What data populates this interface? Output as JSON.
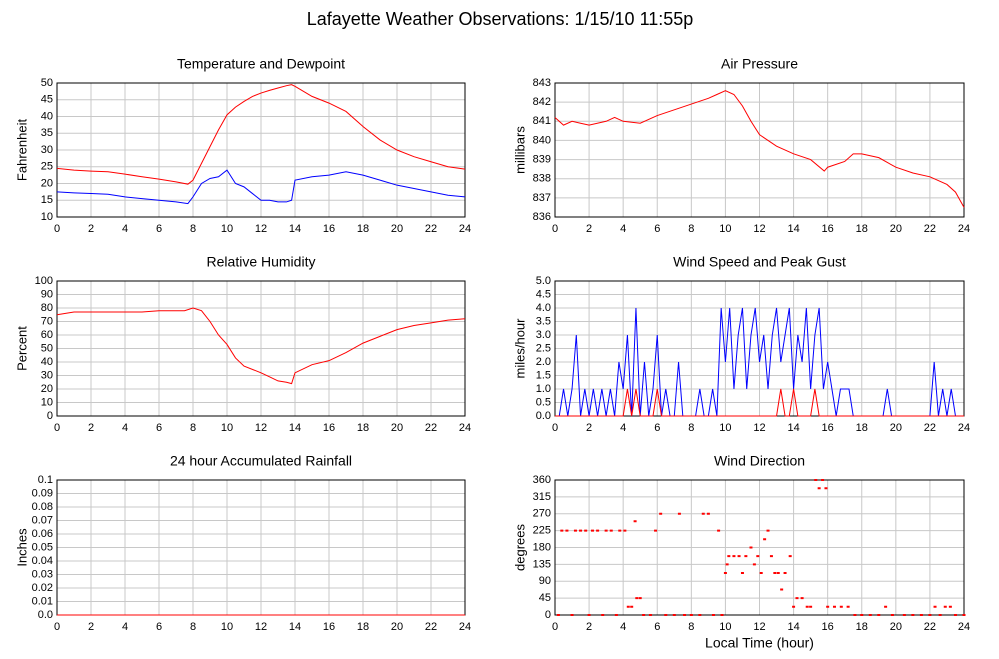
{
  "title": "Lafayette Weather Observations: 1/15/10 11:55p",
  "chart_data": [
    {
      "type": "line",
      "title": "Temperature and Dewpoint",
      "ylabel": "Fahrenheit",
      "x": [
        0,
        1,
        2,
        3,
        4,
        5,
        6,
        7,
        7.7,
        8,
        8.5,
        9,
        9.5,
        10,
        10.5,
        11,
        11.5,
        12,
        12.5,
        13,
        13.5,
        13.8,
        14,
        15,
        16,
        17,
        18,
        19,
        20,
        21,
        22,
        23,
        24
      ],
      "series": [
        {
          "color": "#ff0000",
          "values": [
            24.5,
            24,
            23.7,
            23.5,
            22.8,
            22,
            21.3,
            20.5,
            19.8,
            21,
            26,
            31,
            36,
            40.5,
            42.8,
            44.5,
            46,
            47,
            47.8,
            48.5,
            49.2,
            49.5,
            49,
            46,
            44,
            41.5,
            37,
            33,
            30,
            28,
            26.5,
            25,
            24.3
          ]
        },
        {
          "color": "#0000ff",
          "values": [
            17.5,
            17.2,
            17,
            16.8,
            16,
            15.5,
            15,
            14.5,
            14,
            16,
            20,
            21.5,
            22,
            24,
            20,
            19,
            17,
            15,
            15,
            14.5,
            14.5,
            15,
            21,
            22,
            22.5,
            23.5,
            22.5,
            21,
            19.5,
            18.5,
            17.5,
            16.5,
            16
          ]
        }
      ],
      "xlim": [
        0,
        24
      ],
      "xticks": [
        0,
        2,
        4,
        6,
        8,
        10,
        12,
        14,
        16,
        18,
        20,
        22,
        24
      ],
      "ylim": [
        10,
        50
      ],
      "yticks": [
        10,
        15,
        20,
        25,
        30,
        35,
        40,
        45,
        50
      ],
      "grid": true
    },
    {
      "type": "line",
      "title": "Air Pressure",
      "ylabel": "millibars",
      "x": [
        0,
        0.5,
        1,
        1.5,
        2,
        3,
        3.5,
        4,
        5,
        6,
        7,
        8,
        9,
        9.5,
        10,
        10.5,
        11,
        11.5,
        12,
        13,
        14,
        15,
        15.8,
        16,
        17,
        17.5,
        18,
        19,
        20,
        21,
        22,
        23,
        23.5,
        24
      ],
      "series": [
        {
          "color": "#ff0000",
          "values": [
            841.2,
            840.8,
            841,
            840.9,
            840.8,
            841,
            841.2,
            841,
            840.9,
            841.3,
            841.6,
            841.9,
            842.2,
            842.4,
            842.6,
            842.4,
            841.8,
            841,
            840.3,
            839.7,
            839.3,
            839,
            838.4,
            838.6,
            838.9,
            839.3,
            839.3,
            839.1,
            838.6,
            838.3,
            838.1,
            837.7,
            837.3,
            836.5
          ]
        }
      ],
      "xlim": [
        0,
        24
      ],
      "xticks": [
        0,
        2,
        4,
        6,
        8,
        10,
        12,
        14,
        16,
        18,
        20,
        22,
        24
      ],
      "ylim": [
        836,
        843
      ],
      "yticks": [
        836,
        837,
        838,
        839,
        840,
        841,
        842,
        843
      ],
      "grid": true
    },
    {
      "type": "line",
      "title": "Relative Humidity",
      "ylabel": "Percent",
      "x": [
        0,
        0.5,
        1,
        2,
        4,
        5,
        6,
        7,
        7.5,
        8,
        8.5,
        9,
        9.5,
        10,
        10.5,
        11,
        12,
        12.5,
        13,
        13.5,
        13.8,
        14,
        15,
        16,
        17,
        18,
        19,
        20,
        21,
        22,
        23,
        24
      ],
      "series": [
        {
          "color": "#ff0000",
          "values": [
            75,
            76,
            77,
            77,
            77,
            77,
            78,
            78,
            78,
            80,
            78,
            70,
            60,
            53,
            43,
            37,
            32,
            29,
            26,
            25,
            24,
            32,
            38,
            41,
            47,
            54,
            59,
            64,
            67,
            69,
            71,
            72
          ]
        }
      ],
      "xlim": [
        0,
        24
      ],
      "xticks": [
        0,
        2,
        4,
        6,
        8,
        10,
        12,
        14,
        16,
        18,
        20,
        22,
        24
      ],
      "ylim": [
        0,
        100
      ],
      "yticks": [
        0,
        10,
        20,
        30,
        40,
        50,
        60,
        70,
        80,
        90,
        100
      ],
      "grid": true
    },
    {
      "type": "line",
      "title": "Wind Speed and Peak Gust",
      "ylabel": "miles/hour",
      "x": [
        0,
        0.25,
        0.5,
        0.75,
        1,
        1.25,
        1.5,
        1.75,
        2,
        2.25,
        2.5,
        2.75,
        3,
        3.25,
        3.5,
        3.75,
        4,
        4.25,
        4.5,
        4.75,
        5,
        5.25,
        5.5,
        5.75,
        6,
        6.25,
        6.5,
        6.75,
        7,
        7.25,
        7.5,
        7.75,
        8,
        8.25,
        8.5,
        8.75,
        9,
        9.25,
        9.5,
        9.75,
        10,
        10.25,
        10.5,
        10.75,
        11,
        11.25,
        11.5,
        11.75,
        12,
        12.25,
        12.5,
        12.75,
        13,
        13.25,
        13.5,
        13.75,
        14,
        14.25,
        14.5,
        14.75,
        15,
        15.25,
        15.5,
        15.75,
        16,
        16.25,
        16.5,
        16.75,
        17,
        17.25,
        17.5,
        17.75,
        18,
        18.25,
        18.5,
        18.75,
        19,
        19.25,
        19.5,
        19.75,
        20,
        20.25,
        20.5,
        20.75,
        21,
        21.25,
        21.5,
        21.75,
        22,
        22.25,
        22.5,
        22.75,
        23,
        23.25,
        23.5,
        23.75,
        24
      ],
      "series": [
        {
          "color": "#0000ff",
          "values": [
            0,
            0,
            1,
            0,
            1,
            3,
            0,
            1,
            0,
            1,
            0,
            1,
            0,
            1,
            0,
            2,
            1,
            3,
            0,
            4,
            0,
            2,
            0,
            1,
            3,
            0,
            1,
            0,
            0,
            2,
            0,
            0,
            0,
            0,
            1,
            0,
            0,
            1,
            0,
            4,
            2,
            4,
            1,
            3,
            4,
            1,
            3,
            4,
            2,
            3,
            1,
            3,
            4,
            2,
            3,
            4,
            1,
            3,
            2,
            4,
            1,
            3,
            4,
            1,
            2,
            1,
            0,
            1,
            1,
            1,
            0,
            0,
            0,
            0,
            0,
            0,
            0,
            0,
            1,
            0,
            0,
            0,
            0,
            0,
            0,
            0,
            0,
            0,
            0,
            2,
            0,
            1,
            0,
            1,
            0,
            0,
            0
          ]
        },
        {
          "color": "#ff0000",
          "values": [
            0,
            0,
            0,
            0,
            0,
            0,
            0,
            0,
            0,
            0,
            0,
            0,
            0,
            0,
            0,
            0,
            0,
            1,
            0,
            1,
            0,
            0,
            0,
            0,
            1,
            0,
            0,
            0,
            0,
            0,
            0,
            0,
            0,
            0,
            0,
            0,
            0,
            0,
            0,
            0,
            0,
            0,
            0,
            0,
            0,
            0,
            0,
            0,
            0,
            0,
            0,
            0,
            0,
            1,
            0,
            0,
            1,
            0,
            0,
            0,
            0,
            1,
            0,
            0,
            0,
            0,
            0,
            0,
            0,
            0,
            0,
            0,
            0,
            0,
            0,
            0,
            0,
            0,
            0,
            0,
            0,
            0,
            0,
            0,
            0,
            0,
            0,
            0,
            0,
            0,
            0,
            0,
            0,
            0,
            0,
            0,
            0
          ]
        }
      ],
      "xlim": [
        0,
        24
      ],
      "xticks": [
        0,
        2,
        4,
        6,
        8,
        10,
        12,
        14,
        16,
        18,
        20,
        22,
        24
      ],
      "ylim": [
        0,
        5
      ],
      "yticks": [
        {
          "value": 0,
          "label": "0.0"
        },
        {
          "value": 0.5,
          "label": "0.5"
        },
        {
          "value": 1,
          "label": "1.0"
        },
        {
          "value": 1.5,
          "label": "1.5"
        },
        {
          "value": 2,
          "label": "2.0"
        },
        {
          "value": 2.5,
          "label": "2.5"
        },
        {
          "value": 3,
          "label": "3.0"
        },
        {
          "value": 3.5,
          "label": "3.5"
        },
        {
          "value": 4,
          "label": "4.0"
        },
        {
          "value": 4.5,
          "label": "4.5"
        },
        {
          "value": 5,
          "label": "5.0"
        }
      ],
      "grid": true
    },
    {
      "type": "line",
      "title": "24 hour Accumulated Rainfall",
      "ylabel": "Inches",
      "x": [
        0,
        24
      ],
      "series": [
        {
          "color": "#ff0000",
          "values": [
            0,
            0
          ]
        }
      ],
      "xlim": [
        0,
        24
      ],
      "xticks": [
        0,
        2,
        4,
        6,
        8,
        10,
        12,
        14,
        16,
        18,
        20,
        22,
        24
      ],
      "ylim": [
        0,
        0.1
      ],
      "yticks": [
        {
          "value": 0,
          "label": "0.0"
        },
        0.01,
        0.02,
        0.03,
        0.04,
        0.05,
        0.06,
        0.07,
        0.08,
        0.09,
        0.1
      ],
      "grid": true
    },
    {
      "type": "scatter",
      "title": "Wind Direction",
      "ylabel": "degrees",
      "xlabel": "Local Time (hour)",
      "x": [
        0.2,
        0.4,
        0.7,
        1.0,
        1.2,
        1.5,
        1.8,
        2.0,
        2.2,
        2.5,
        2.8,
        3.0,
        3.3,
        3.6,
        3.8,
        4.1,
        4.3,
        4.5,
        4.7,
        4.8,
        5.0,
        5.2,
        5.6,
        5.9,
        6.2,
        6.5,
        7.0,
        7.3,
        7.6,
        8.0,
        8.5,
        8.7,
        9.0,
        9.3,
        9.6,
        9.8,
        10.0,
        10.1,
        10.2,
        10.5,
        10.8,
        11.0,
        11.2,
        11.5,
        11.7,
        11.9,
        12.1,
        12.3,
        12.5,
        12.7,
        12.9,
        13.1,
        13.3,
        13.5,
        13.8,
        14.0,
        14.2,
        14.5,
        14.8,
        15.0,
        15.3,
        15.5,
        15.7,
        15.9,
        16.0,
        16.4,
        16.8,
        17.2,
        17.6,
        18.0,
        18.5,
        19.0,
        19.4,
        19.8,
        20.5,
        21.0,
        21.5,
        22.0,
        22.3,
        22.6,
        22.9,
        23.2,
        23.5,
        24.0
      ],
      "series": [
        {
          "color": "#ff0000",
          "values": [
            0,
            225,
            225,
            0,
            225,
            225,
            225,
            0,
            225,
            225,
            0,
            225,
            225,
            0,
            225,
            225,
            22,
            22,
            250,
            45,
            45,
            0,
            0,
            225,
            270,
            0,
            0,
            270,
            0,
            0,
            0,
            270,
            270,
            0,
            225,
            0,
            112,
            135,
            157,
            157,
            157,
            112,
            157,
            180,
            135,
            157,
            112,
            202,
            225,
            157,
            112,
            112,
            68,
            112,
            157,
            22,
            45,
            45,
            22,
            22,
            360,
            338,
            360,
            338,
            22,
            22,
            22,
            22,
            0,
            0,
            0,
            0,
            22,
            0,
            0,
            0,
            0,
            0,
            22,
            0,
            22,
            22,
            0,
            0
          ]
        }
      ],
      "xlim": [
        0,
        24
      ],
      "xticks": [
        0,
        2,
        4,
        6,
        8,
        10,
        12,
        14,
        16,
        18,
        20,
        22,
        24
      ],
      "ylim": [
        0,
        360
      ],
      "yticks": [
        0,
        45,
        90,
        135,
        180,
        225,
        270,
        315,
        360
      ],
      "grid": true
    }
  ]
}
